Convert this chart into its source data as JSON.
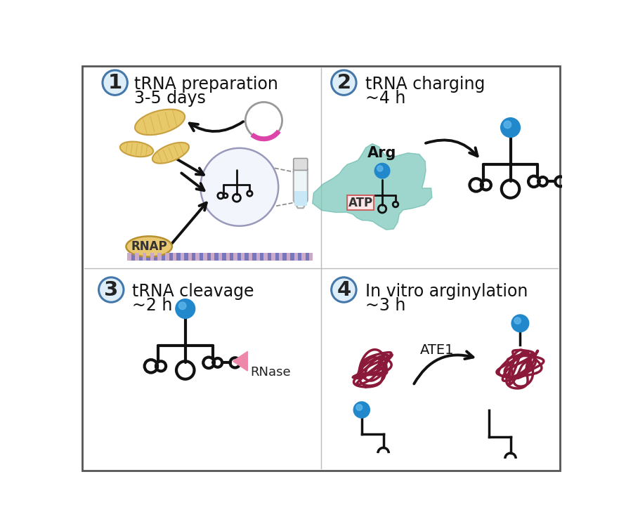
{
  "background_color": "#ffffff",
  "border_color": "#555555",
  "step1_label1": "tRNA preparation",
  "step1_label2": "3-5 days",
  "step2_label1": "tRNA charging",
  "step2_label2": "~4 h",
  "step3_label1": "tRNA cleavage",
  "step3_label2": "~2 h",
  "step4_label1": "In vitro arginylation",
  "step4_label2": "~3 h",
  "circle_bg": "#ddeef8",
  "circle_border": "#4477aa",
  "bacteria_color": "#e8c96a",
  "bacteria_border": "#c8a040",
  "plasmid_border": "#888888",
  "plasmid_accent": "#dd44aa",
  "tube_liquid": "#c8e8f8",
  "tRNA_color": "#111111",
  "blue_ball_main": "#2288cc",
  "blue_ball_highlight": "#66bbee",
  "enzyme_fill": "#7ec8bb",
  "enzyme_border": "#44aa99",
  "arrow_color": "#222222",
  "rnap_color": "#e8c870",
  "rnap_border": "#b89030",
  "dna_purple": "#7777bb",
  "dna_pink": "#ccaacc",
  "pink_triangle": "#ee88aa",
  "protein_color": "#8b1a3a",
  "atp_fill": "#fce8e8",
  "atp_border": "#cc6666",
  "arg_color": "#222222"
}
